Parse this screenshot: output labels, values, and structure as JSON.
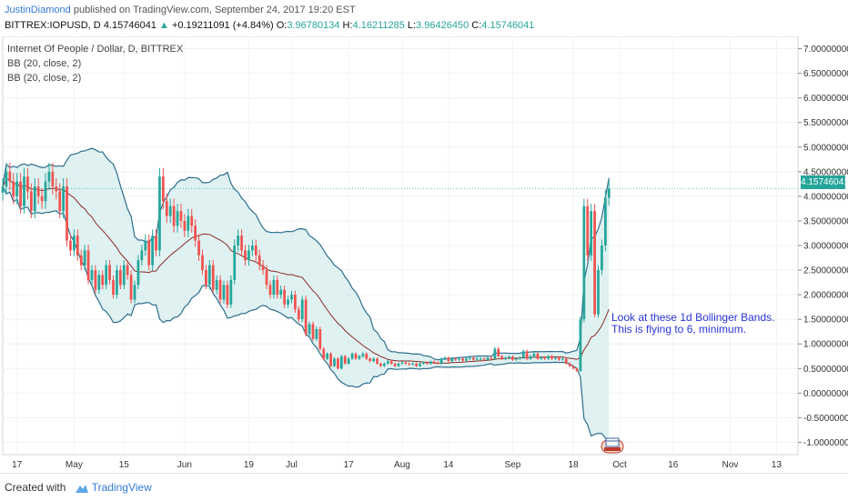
{
  "header": {
    "author": "JustinDiamond",
    "published": "published on TradingView.com, September 24, 2017 19:20 EST",
    "symbol": "BITTREX:IOPUSD, D",
    "last": "4.15746041",
    "change_arrow": "▲",
    "change": "+0.19211091 (+4.84%)",
    "o_label": "O:",
    "o_value": "3.96780134",
    "h_label": "H:",
    "h_value": "4.16211285",
    "l_label": "L:",
    "l_value": "3.96426450",
    "c_label": "C:",
    "c_value": "4.15746041"
  },
  "legend": {
    "title": "Internet Of People / Dollar, D, BITTREX",
    "bb1": "BB (20, close, 2)",
    "bb2": "BB (20, close, 2)"
  },
  "annotation": {
    "line1": "Look at these 1d Bollinger Bands.",
    "line2": "This is flying to 6, minimum."
  },
  "price_tag": "4.15746041",
  "footer": {
    "created": "Created with",
    "brand": "TradingView"
  },
  "colors": {
    "up": "#26a69a",
    "down": "#ef5350",
    "band": "#2e6e8e",
    "band_fill": "#d7eeee",
    "basis": "#8b2b2b",
    "annotation": "#2a35d8",
    "brand": "#3179d6"
  },
  "chart_data": {
    "type": "candlestick",
    "y_axis_labels": [
      "7.00000000",
      "6.50000000",
      "6.00000000",
      "5.50000000",
      "5.00000000",
      "4.50000000",
      "4.00000000",
      "3.50000000",
      "3.00000000",
      "2.50000000",
      "2.00000000",
      "1.50000000",
      "1.00000000",
      "0.50000000",
      "0.00000000",
      "-0.50000000",
      "-1.00000000"
    ],
    "y_axis_values": [
      7.0,
      6.5,
      6.0,
      5.5,
      5.0,
      4.5,
      4.0,
      3.5,
      3.0,
      2.5,
      2.0,
      1.5,
      1.0,
      0.5,
      0.0,
      -0.5,
      -1.0
    ],
    "ylim": [
      -1.25,
      7.25
    ],
    "x_tick_labels": [
      "17",
      "May",
      "15",
      "Jun",
      "19",
      "Jul",
      "17",
      "Aug",
      "14",
      "Sep",
      "18",
      "Oct",
      "16",
      "Nov",
      "13"
    ],
    "x_tick_days": [
      -16,
      0,
      14,
      31,
      49,
      61,
      77,
      92,
      105,
      123,
      140,
      153,
      168,
      184,
      197
    ],
    "x_axis_day0": "May 1, 2017",
    "last_price": 4.15746041,
    "series": [
      {
        "name": "close",
        "values": [
          4.2,
          4.5,
          4.3,
          4.0,
          4.3,
          3.8,
          4.4,
          4.1,
          3.7,
          4.2,
          4.0,
          3.9,
          4.3,
          4.5,
          4.2,
          4.1,
          3.7,
          4.2,
          3.1,
          2.9,
          3.2,
          2.8,
          2.6,
          2.9,
          2.3,
          2.5,
          2.1,
          2.4,
          2.2,
          2.6,
          2.3,
          2.0,
          2.5,
          2.2,
          2.6,
          2.4,
          1.9,
          2.2,
          2.7,
          2.9,
          3.1,
          2.6,
          3.2,
          2.9,
          4.4,
          3.9,
          3.6,
          3.8,
          3.4,
          3.7,
          3.5,
          3.3,
          3.6,
          3.4,
          3.1,
          2.8,
          2.5,
          2.2,
          2.6,
          2.1,
          2.3,
          1.9,
          2.2,
          1.8,
          2.3,
          3.0,
          3.2,
          2.9,
          2.7,
          2.9,
          3.0,
          2.8,
          2.6,
          2.5,
          2.2,
          2.0,
          2.3,
          2.0,
          2.1,
          1.8,
          1.9,
          2.0,
          1.7,
          1.5,
          1.9,
          1.2,
          1.4,
          1.1,
          1.3,
          0.9,
          0.7,
          0.8,
          0.55,
          0.7,
          0.5,
          0.75,
          0.6,
          0.7,
          0.8,
          0.7,
          0.75,
          0.8,
          0.7,
          0.65,
          0.7,
          0.6,
          0.55,
          0.6,
          0.65,
          0.6,
          0.55,
          0.6,
          0.62,
          0.6,
          0.58,
          0.6,
          0.55,
          0.6,
          0.62,
          0.6,
          0.64,
          0.62,
          0.6,
          0.7,
          0.72,
          0.65,
          0.7,
          0.68,
          0.7,
          0.66,
          0.7,
          0.72,
          0.68,
          0.7,
          0.7,
          0.68,
          0.72,
          0.7,
          0.9,
          0.75,
          0.7,
          0.72,
          0.74,
          0.68,
          0.7,
          0.72,
          0.85,
          0.7,
          0.75,
          0.8,
          0.7,
          0.72,
          0.7,
          0.75,
          0.7,
          0.72,
          0.68,
          0.7,
          0.6,
          0.55,
          0.5,
          0.45,
          1.5,
          3.8,
          2.8,
          3.7,
          1.6,
          2.5,
          3.0,
          3.97,
          4.16
        ]
      }
    ]
  }
}
